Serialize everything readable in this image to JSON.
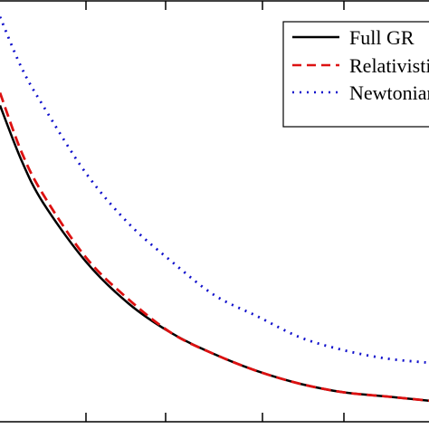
{
  "chart_data": {
    "type": "line",
    "title": "",
    "xlabel": "",
    "ylabel": "",
    "grid": false,
    "legend_position": "top-right",
    "xlim": [
      0,
      1
    ],
    "ylim": [
      0,
      1
    ],
    "series": [
      {
        "name": "Full GR",
        "color": "#000000",
        "style": "solid",
        "x": [
          0.0,
          0.05,
          0.1,
          0.2,
          0.3,
          0.4,
          0.5,
          0.6,
          0.7,
          0.8,
          0.9,
          1.0
        ],
        "y": [
          0.75,
          0.62,
          0.52,
          0.38,
          0.28,
          0.21,
          0.16,
          0.12,
          0.09,
          0.07,
          0.06,
          0.05
        ]
      },
      {
        "name": "Relativistic",
        "color": "#dd1111",
        "style": "dashed",
        "x": [
          0.0,
          0.05,
          0.1,
          0.2,
          0.3,
          0.4,
          0.5,
          0.6,
          0.7,
          0.8,
          0.9,
          1.0
        ],
        "y": [
          0.78,
          0.64,
          0.54,
          0.39,
          0.29,
          0.21,
          0.16,
          0.12,
          0.09,
          0.07,
          0.06,
          0.05
        ]
      },
      {
        "name": "Newtonian",
        "color": "#1111cc",
        "style": "dotted",
        "x": [
          0.0,
          0.05,
          0.1,
          0.2,
          0.3,
          0.4,
          0.5,
          0.6,
          0.7,
          0.8,
          0.9,
          1.0
        ],
        "y": [
          0.96,
          0.84,
          0.75,
          0.59,
          0.47,
          0.38,
          0.3,
          0.25,
          0.2,
          0.17,
          0.15,
          0.14
        ]
      }
    ]
  }
}
